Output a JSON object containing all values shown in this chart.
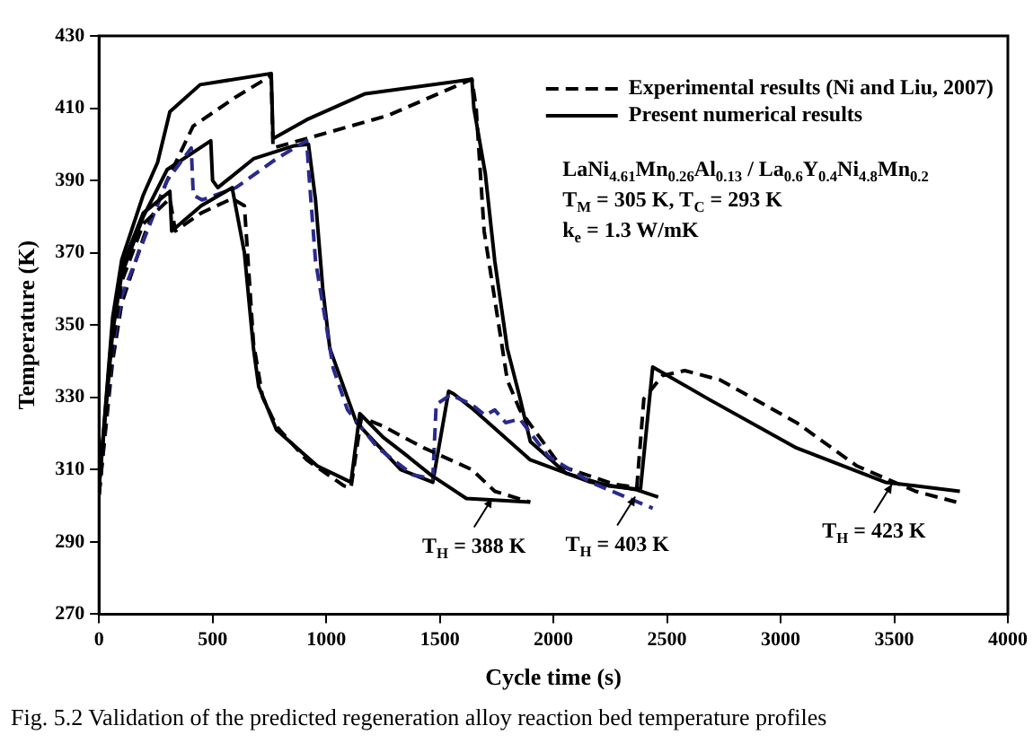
{
  "chart_data": {
    "type": "line",
    "xlabel": "Cycle time (s)",
    "ylabel": "Temperature (K)",
    "xlim": [
      0,
      4000
    ],
    "xticks": [
      0,
      500,
      1000,
      1500,
      2000,
      2500,
      3000,
      3500,
      4000
    ],
    "ylim": [
      270,
      430
    ],
    "yticks": [
      270,
      290,
      310,
      330,
      350,
      370,
      390,
      410,
      430
    ],
    "grid": false,
    "legend": "top right",
    "marker": "none",
    "series": [
      {
        "name": "Experimental results (Ni and Liu, 2007)",
        "color": "#000000",
        "line_style": "dashed",
        "x": [
          0,
          60,
          100,
          195,
          312,
          336,
          450,
          586,
          640,
          680,
          720,
          781,
          914,
          1078,
          1109,
          1155,
          1250,
          1430,
          1641,
          1742,
          1898
        ],
        "values": [
          303,
          345,
          362,
          378,
          385,
          376,
          381,
          385,
          383,
          345,
          330,
          322,
          312.7,
          305.5,
          305,
          324.5,
          322,
          316,
          310,
          304,
          301
        ]
      },
      {
        "name": "Present numerical results",
        "color": "#000000",
        "line_style": "solid",
        "x": [
          0,
          60,
          100,
          195,
          312,
          320,
          450,
          586,
          640,
          680,
          703,
          781,
          961,
          1109,
          1148,
          1250,
          1352,
          1461,
          1617,
          1898
        ],
        "values": [
          305,
          350,
          366,
          381,
          387,
          376,
          383,
          388,
          370,
          343.5,
          333,
          321,
          311,
          306.5,
          325.5,
          319,
          314,
          308.5,
          302,
          301
        ]
      },
      {
        "color": "#2a2a8c",
        "line_style": "dashed",
        "x": [
          0,
          60,
          100,
          180,
          300,
          406,
          415,
          453,
          602,
          781,
          914,
          922,
          953,
          1000,
          1031,
          1094,
          1227,
          1383,
          1469,
          1484,
          1547,
          1641,
          1700,
          1742,
          1790,
          1852,
          1977,
          2164,
          2437
        ],
        "values": [
          303,
          343,
          358,
          370.8,
          390,
          399,
          386,
          384.6,
          388,
          396,
          401,
          393.4,
          367.7,
          350,
          338,
          326.5,
          316,
          308.5,
          307.5,
          328,
          330.7,
          328,
          325,
          326.5,
          323,
          324,
          313.7,
          306.5,
          299.3
        ]
      },
      {
        "color": "#000000",
        "line_style": "solid",
        "x": [
          0,
          60,
          100,
          195,
          300,
          492,
          500,
          523,
          680,
          859,
          922,
          953,
          985,
          1016,
          1133,
          1328,
          1469,
          1539,
          1560,
          1641,
          1898,
          2164,
          2367,
          2461
        ],
        "values": [
          305,
          348,
          364,
          380,
          393,
          401,
          390,
          388,
          396,
          399.6,
          400,
          384.6,
          360,
          343.5,
          323,
          310,
          306.5,
          331.7,
          331,
          327,
          312.7,
          306.5,
          304.4,
          302.4
        ]
      },
      {
        "color": "#000000",
        "line_style": "dashed",
        "x": [
          0,
          60,
          100,
          200,
          300,
          414,
          600,
          758,
          766,
          914,
          1273,
          1641,
          1660,
          1695,
          1797,
          1852,
          2031,
          2266,
          2367,
          2398,
          2480,
          2578,
          2734,
          3070,
          3336,
          3594,
          3773
        ],
        "values": [
          303,
          340,
          356,
          375,
          390,
          405,
          413,
          419,
          399,
          401.6,
          408,
          418,
          410,
          376,
          334.8,
          326.5,
          311,
          306,
          305,
          329.6,
          336,
          337.4,
          334.8,
          323,
          311,
          304,
          301
        ]
      },
      {
        "color": "#000000",
        "line_style": "solid",
        "x": [
          0,
          60,
          100,
          195,
          258,
          312,
          445,
          758,
          766,
          914,
          1172,
          1641,
          1650,
          1700,
          1742,
          1797,
          1852,
          1898,
          2055,
          2242,
          2383,
          2437,
          2680,
          3070,
          3461,
          3789
        ],
        "values": [
          305,
          352,
          368,
          386,
          395,
          409,
          416.5,
          419.6,
          401.6,
          406.8,
          414,
          418,
          410,
          392,
          367.7,
          343.5,
          330,
          317.8,
          309,
          305.5,
          304.5,
          338.4,
          329.6,
          316,
          306.5,
          304
        ]
      }
    ],
    "annotations": [
      "LaNi$_{4.61}$Mn$_{0.26}$Al$_{0.13}$ / La$_{0.6}$Y$_{0.4}$Ni$_{4.8}$Mn$_{0.2}$",
      "T$_{M}$ = 305 K, T$_{C}$ = 293 K",
      "k$_{e}$ = 1.3 W/mK",
      {
        "text": "T$_{H}$ = 388 K",
        "x": 1730,
        "y": 302
      },
      {
        "text": "T$_{H}$ = 403 K",
        "x": 2360,
        "y": 302.5
      },
      {
        "text": "T$_{H}$ = 423 K",
        "x": 3490,
        "y": 306
      },
      "Fig. 5.2 Validation of the predicted regeneration alloy reaction bed temperature profiles"
    ]
  }
}
